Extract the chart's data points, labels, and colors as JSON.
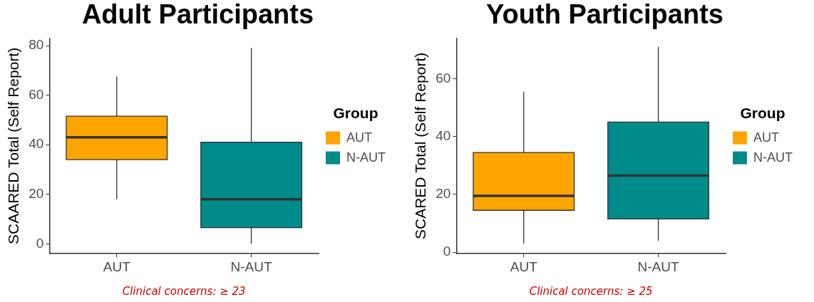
{
  "chart_data": [
    {
      "type": "box",
      "title": "Adult Participants",
      "ylabel": "SCAARED Total (Self Report)",
      "legend_title": "Group",
      "legend": "right",
      "grid": false,
      "categories": [
        "AUT",
        "N-AUT"
      ],
      "ylim": [
        -4,
        83
      ],
      "yticks": [
        0,
        20,
        40,
        60,
        80
      ],
      "series": [
        {
          "name": "AUT",
          "color": "#ffa500",
          "boxes": [
            {
              "low": 18,
              "q1": 34,
              "median": 43,
              "q3": 51.5,
              "high": 67.5
            },
            null
          ]
        },
        {
          "name": "N-AUT",
          "color": "#008b8b",
          "boxes": [
            null,
            {
              "low": 0,
              "q1": 6.5,
              "median": 18,
              "q3": 41,
              "high": 79
            }
          ]
        }
      ],
      "annotations": [
        "Clinical concerns: ≥ 23"
      ]
    },
    {
      "type": "box",
      "title": "Youth Participants",
      "ylabel": "SCARED Total (Self Report)",
      "legend_title": "Group",
      "legend": "right",
      "grid": false,
      "categories": [
        "AUT",
        "N-AUT"
      ],
      "ylim": [
        -0.5,
        74
      ],
      "yticks": [
        0,
        20,
        40,
        60
      ],
      "series": [
        {
          "name": "AUT",
          "color": "#ffa500",
          "boxes": [
            {
              "low": 3,
              "q1": 14.5,
              "median": 19.5,
              "q3": 34.5,
              "high": 55.5
            },
            null
          ]
        },
        {
          "name": "N-AUT",
          "color": "#008b8b",
          "boxes": [
            null,
            {
              "low": 4,
              "q1": 11.5,
              "median": 26.5,
              "q3": 45,
              "high": 71
            }
          ]
        }
      ],
      "annotations": [
        "Clinical concerns: ≥ 25"
      ]
    }
  ]
}
